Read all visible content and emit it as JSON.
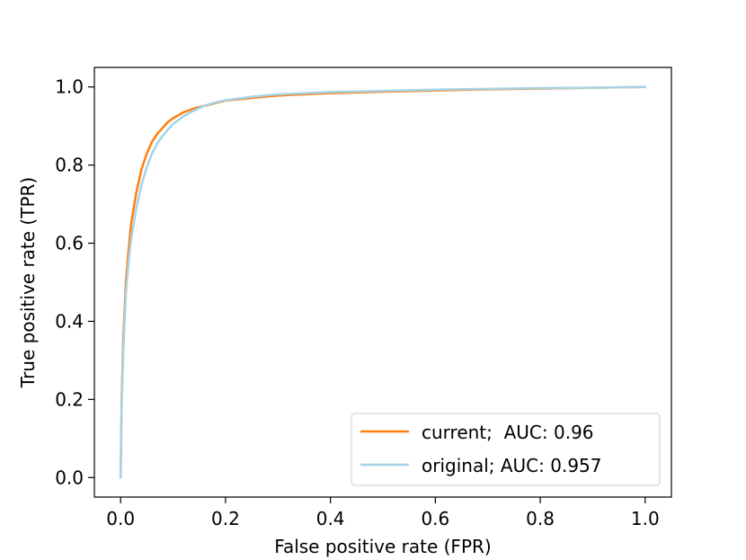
{
  "chart_data": {
    "type": "line",
    "title": "",
    "xlabel": "False positive rate (FPR)",
    "ylabel": "True positive rate (TPR)",
    "xlim": [
      -0.05,
      1.05
    ],
    "ylim": [
      -0.05,
      1.05
    ],
    "grid": false,
    "legend_position": "lower-right",
    "xticks": [
      {
        "value": 0.0,
        "label": "0.0"
      },
      {
        "value": 0.2,
        "label": "0.2"
      },
      {
        "value": 0.4,
        "label": "0.4"
      },
      {
        "value": 0.6,
        "label": "0.6"
      },
      {
        "value": 0.8,
        "label": "0.8"
      },
      {
        "value": 1.0,
        "label": "1.0"
      }
    ],
    "yticks": [
      {
        "value": 0.0,
        "label": "0.0"
      },
      {
        "value": 0.2,
        "label": "0.2"
      },
      {
        "value": 0.4,
        "label": "0.4"
      },
      {
        "value": 0.6,
        "label": "0.6"
      },
      {
        "value": 0.8,
        "label": "0.8"
      },
      {
        "value": 1.0,
        "label": "1.0"
      }
    ],
    "series": [
      {
        "name": "current;  AUC: 0.96",
        "color": "#ff7f0e",
        "x": [
          0.0,
          0.002,
          0.005,
          0.01,
          0.015,
          0.02,
          0.03,
          0.04,
          0.05,
          0.06,
          0.07,
          0.08,
          0.09,
          0.1,
          0.12,
          0.14,
          0.17,
          0.2,
          0.25,
          0.3,
          0.4,
          0.5,
          0.6,
          0.7,
          0.8,
          0.9,
          1.0
        ],
        "y": [
          0.0,
          0.2,
          0.35,
          0.5,
          0.58,
          0.65,
          0.73,
          0.79,
          0.83,
          0.86,
          0.88,
          0.895,
          0.91,
          0.92,
          0.935,
          0.945,
          0.955,
          0.965,
          0.972,
          0.978,
          0.984,
          0.988,
          0.991,
          0.994,
          0.996,
          0.998,
          1.0
        ]
      },
      {
        "name": "original; AUC: 0.957",
        "color": "#a6d3e6",
        "x": [
          0.0,
          0.002,
          0.005,
          0.01,
          0.015,
          0.02,
          0.03,
          0.04,
          0.05,
          0.06,
          0.07,
          0.08,
          0.1,
          0.12,
          0.14,
          0.16,
          0.18,
          0.2,
          0.25,
          0.3,
          0.4,
          0.5,
          0.6,
          0.7,
          0.8,
          0.9,
          1.0
        ],
        "y": [
          0.0,
          0.18,
          0.32,
          0.47,
          0.55,
          0.61,
          0.69,
          0.75,
          0.795,
          0.83,
          0.855,
          0.875,
          0.905,
          0.925,
          0.94,
          0.952,
          0.96,
          0.966,
          0.975,
          0.981,
          0.987,
          0.99,
          0.993,
          0.995,
          0.997,
          0.998,
          1.0
        ]
      }
    ]
  }
}
